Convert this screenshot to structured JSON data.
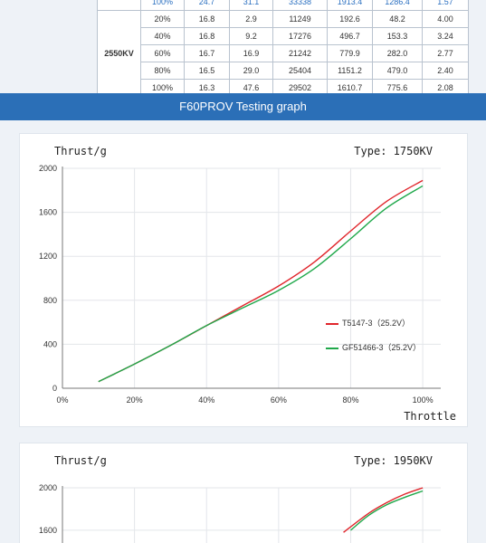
{
  "table": {
    "rows": [
      {
        "cells": [
          "100%",
          "24.7",
          "31.1",
          "33338",
          "1913.4",
          "1286.4",
          "1.57"
        ],
        "partial": true
      },
      {
        "kv": "2550KV",
        "cells": [
          "20%",
          "16.8",
          "2.9",
          "11249",
          "192.6",
          "48.2",
          "4.00"
        ]
      },
      {
        "cells": [
          "40%",
          "16.8",
          "9.2",
          "17276",
          "496.7",
          "153.3",
          "3.24"
        ]
      },
      {
        "cells": [
          "60%",
          "16.7",
          "16.9",
          "21242",
          "779.9",
          "282.0",
          "2.77"
        ]
      },
      {
        "cells": [
          "80%",
          "16.5",
          "29.0",
          "25404",
          "1151.2",
          "479.0",
          "2.40"
        ]
      },
      {
        "cells": [
          "100%",
          "16.3",
          "47.6",
          "29502",
          "1610.7",
          "775.6",
          "2.08"
        ]
      }
    ]
  },
  "banner": {
    "title": "F60PROV Testing graph"
  },
  "chart_data": [
    {
      "type": "line",
      "ylabel": "Thrust/g",
      "xlabel": "Throttle",
      "subtitle": "Type: 1750KV",
      "x_ticks": [
        "0%",
        "20%",
        "40%",
        "60%",
        "80%",
        "100%"
      ],
      "y_ticks": [
        "0",
        "400",
        "800",
        "1200",
        "1600",
        "2000"
      ],
      "xlim": [
        0,
        105
      ],
      "ylim": [
        0,
        2000
      ],
      "grid": true,
      "legend_position": "right",
      "series": [
        {
          "name": "T5147-3（25.2V）",
          "color": "#e0252b",
          "x": [
            10,
            20,
            30,
            40,
            50,
            60,
            70,
            80,
            90,
            100
          ],
          "y": [
            60,
            220,
            390,
            570,
            750,
            930,
            1150,
            1430,
            1700,
            1890
          ]
        },
        {
          "name": "GF51466-3（25.2V）",
          "color": "#1fa84a",
          "x": [
            10,
            20,
            30,
            40,
            50,
            60,
            70,
            80,
            90,
            100
          ],
          "y": [
            60,
            220,
            390,
            570,
            730,
            890,
            1090,
            1360,
            1640,
            1840
          ]
        }
      ]
    },
    {
      "type": "line",
      "ylabel": "Thrust/g",
      "subtitle": "Type: 1950KV",
      "y_ticks": [
        "2000",
        "1600"
      ],
      "xlim": [
        0,
        105
      ],
      "ylim": [
        0,
        2000
      ],
      "grid": true,
      "series": [
        {
          "color": "#e0252b",
          "x": [
            78,
            85,
            90,
            95,
            100
          ],
          "y": [
            1580,
            1760,
            1860,
            1940,
            2000
          ]
        },
        {
          "color": "#1fa84a",
          "x": [
            80,
            85,
            90,
            95,
            100
          ],
          "y": [
            1600,
            1740,
            1840,
            1910,
            1970
          ]
        }
      ]
    }
  ]
}
